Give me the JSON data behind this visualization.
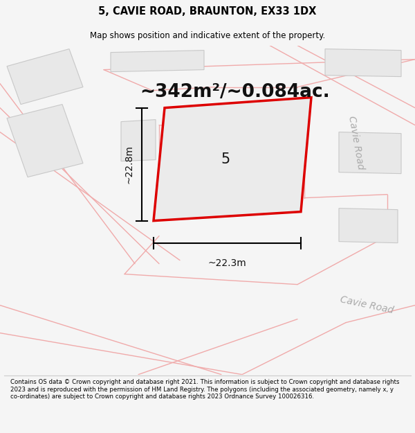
{
  "title": "5, CAVIE ROAD, BRAUNTON, EX33 1DX",
  "subtitle": "Map shows position and indicative extent of the property.",
  "area_text": "~342m²/~0.084ac.",
  "label_5": "5",
  "dim_width": "~22.3m",
  "dim_height": "~22.8m",
  "road_label1": "Cavie Road",
  "road_label2": "Cavie Road",
  "footer": "Contains OS data © Crown copyright and database right 2021. This information is subject to Crown copyright and database rights 2023 and is reproduced with the permission of HM Land Registry. The polygons (including the associated geometry, namely x, y co-ordinates) are subject to Crown copyright and database rights 2023 Ordnance Survey 100026316.",
  "bg_color": "#f5f5f5",
  "map_bg": "#ffffff",
  "plot_fill": "#ebebeb",
  "plot_edge": "#dd0000",
  "building_fill": "#e8e8e8",
  "building_edge": "#c8c8c8",
  "road_fill": "#ffffff",
  "pink_line": "#f0aaaa",
  "gray_line": "#c0c0c0",
  "title_fontsize": 10.5,
  "subtitle_fontsize": 8.5,
  "area_fontsize": 19,
  "label_fontsize": 15,
  "dim_fontsize": 10,
  "road_fontsize": 10,
  "footer_fontsize": 6.2
}
